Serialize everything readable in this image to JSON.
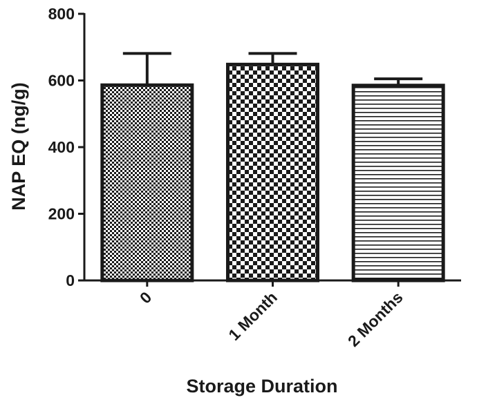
{
  "chart_data": {
    "type": "bar",
    "title": "",
    "xlabel": "Storage Duration",
    "ylabel": "NAP EQ (ng/g)",
    "ylim": [
      0,
      800
    ],
    "yticks": [
      0,
      200,
      400,
      600,
      800
    ],
    "categories": [
      "0",
      "1 Month",
      "2 Months"
    ],
    "values": [
      586,
      648,
      585
    ],
    "errors": [
      95,
      33,
      20
    ],
    "bar_patterns": [
      "fine-checker",
      "checker",
      "horizontal-lines"
    ],
    "grid": false,
    "colors": {
      "stroke": "#1a1a1a",
      "fill": "#ffffff"
    }
  }
}
